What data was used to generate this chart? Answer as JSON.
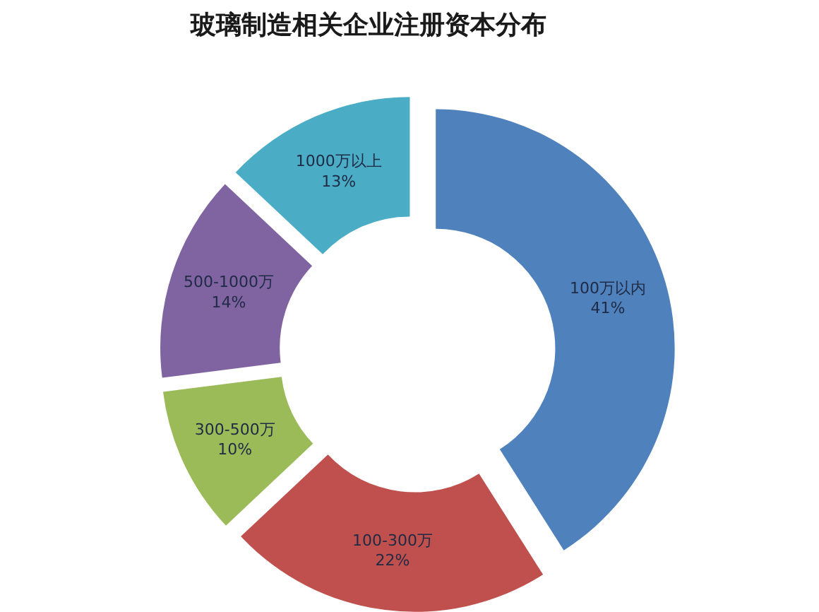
{
  "chart_data": {
    "type": "donut",
    "title": "玻璃制造相关企业注册资本分布",
    "categories": [
      "100万以内",
      "100-300万",
      "300-500万",
      "500-1000万",
      "1000万以上"
    ],
    "values": [
      41,
      22,
      10,
      14,
      13
    ],
    "value_labels": [
      "41%",
      "22%",
      "10%",
      "14%",
      "13%"
    ],
    "colors": [
      "#4f81bd",
      "#c0504d",
      "#9bbb59",
      "#8064a2",
      "#4bacc6"
    ]
  }
}
